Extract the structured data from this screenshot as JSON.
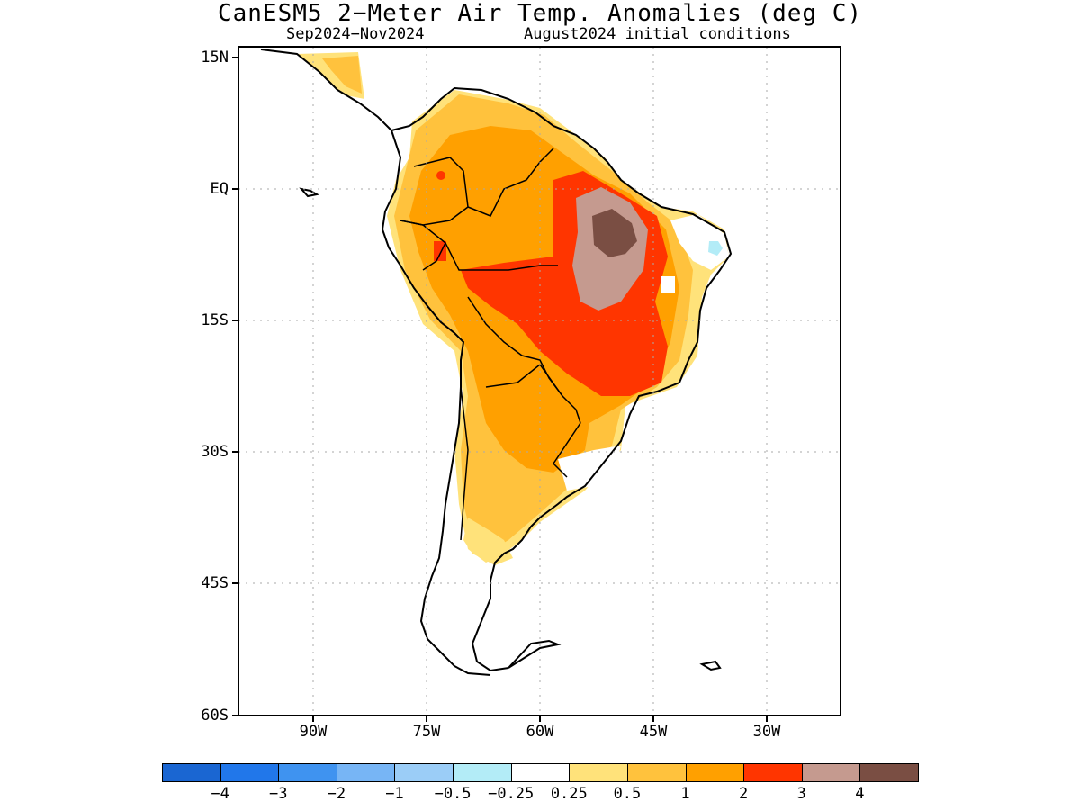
{
  "header": {
    "title": "CanESM5 2−Meter Air Temp. Anomalies (deg C)",
    "period": "Sep2024−Nov2024",
    "initial_conditions": "August2024 initial conditions"
  },
  "axes": {
    "lat_ticks": [
      "15N",
      "EQ",
      "15S",
      "30S",
      "45S",
      "60S"
    ],
    "lon_ticks": [
      "90W",
      "75W",
      "60W",
      "45W",
      "30W"
    ]
  },
  "legend": {
    "labels": [
      "−4",
      "−3",
      "−2",
      "−1",
      "−0.5",
      "−0.25",
      "0.25",
      "0.5",
      "1",
      "2",
      "3",
      "4"
    ],
    "colors": [
      "#1a66d2",
      "#2177ea",
      "#3f93f0",
      "#77b5f5",
      "#9bcdf7",
      "#b3ecf7",
      "#ffffff",
      "#ffe27a",
      "#ffc23d",
      "#ffa000",
      "#ff3500",
      "#c59a8f",
      "#7a4e43"
    ]
  }
}
